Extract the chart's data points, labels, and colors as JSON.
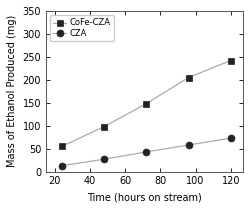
{
  "title": "",
  "xlabel": "Time (hours on stream)",
  "ylabel": "Mass of Ethanol Produced (mg)",
  "xlim": [
    15,
    127
  ],
  "ylim": [
    0,
    350
  ],
  "xticks": [
    20,
    40,
    60,
    80,
    100,
    120
  ],
  "yticks": [
    0,
    50,
    100,
    150,
    200,
    250,
    300,
    350
  ],
  "series": [
    {
      "label": "CoFe-CZA",
      "x": [
        24,
        48,
        72,
        96,
        120
      ],
      "y": [
        55,
        98,
        148,
        205,
        242
      ],
      "color": "#222222",
      "marker": "s",
      "markersize": 5,
      "linewidth": 0.9,
      "line_color": "#aaaaaa"
    },
    {
      "label": "CZA",
      "x": [
        24,
        48,
        72,
        96,
        120
      ],
      "y": [
        13,
        27,
        43,
        58,
        73
      ],
      "color": "#222222",
      "marker": "o",
      "markersize": 5,
      "linewidth": 0.9,
      "line_color": "#aaaaaa"
    }
  ],
  "legend_loc": "upper left",
  "background_color": "#ffffff",
  "axes_background": "#ffffff",
  "tick_fontsize": 7,
  "label_fontsize": 7,
  "legend_fontsize": 6
}
